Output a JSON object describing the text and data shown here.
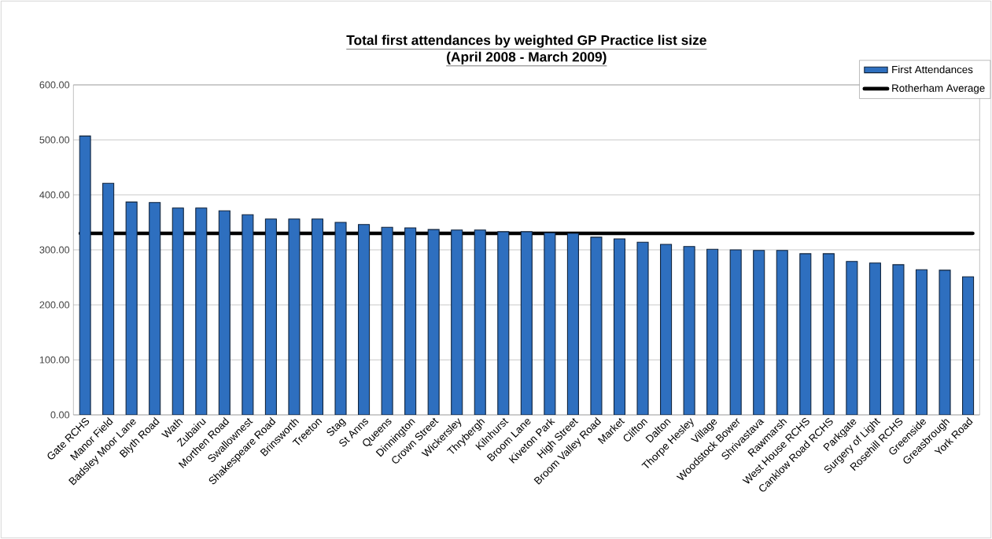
{
  "chart_data": {
    "type": "bar",
    "title": "Total first attendances by weighted GP Practice list size",
    "subtitle": "(April 2008 - March 2009)",
    "categories": [
      "Gate RCHS",
      "Manor Field",
      "Badsley Moor Lane",
      "Blyth Road",
      "Wath",
      "Zubairu",
      "Morthen Road",
      "Swallownest",
      "Shakespeare Road",
      "Brinsworth",
      "Treeton",
      "Stag",
      "St Anns",
      "Queens",
      "Dinnington",
      "Crown Street",
      "Wickersley",
      "Thrybergh",
      "Kilnhurst",
      "Broom Lane",
      "Kiveton Park",
      "High Street",
      "Broom Valley Road",
      "Market",
      "Clifton",
      "Dalton",
      "Thorpe Hesley",
      "Village",
      "Woodstock Bower",
      "Shrivastava",
      "Rawmarsh",
      "West House RCHS",
      "Canklow Road RCHS",
      "Parkgate",
      "Surgery of Light",
      "Rosehill RCHS",
      "Greenside",
      "Greasbrough",
      "York Road"
    ],
    "series": [
      {
        "name": "First Attendances",
        "color": "#2e6fbf",
        "values": [
          507,
          421,
          387,
          386,
          376,
          376,
          371,
          364,
          356,
          356,
          356,
          350,
          346,
          341,
          340,
          337,
          336,
          336,
          333,
          333,
          331,
          330,
          323,
          320,
          314,
          310,
          306,
          301,
          300,
          299,
          299,
          293,
          293,
          279,
          276,
          273,
          264,
          263,
          251
        ]
      }
    ],
    "ref_lines": [
      {
        "axis": "y",
        "value": 330,
        "label": "Rotherham Average",
        "color": "#000000"
      }
    ],
    "ylim": [
      0,
      600
    ],
    "yticks": [
      {
        "value": 0,
        "label": "0.00"
      },
      {
        "value": 100,
        "label": "100.00"
      },
      {
        "value": 200,
        "label": "200.00"
      },
      {
        "value": 300,
        "label": "300.00"
      },
      {
        "value": 400,
        "label": "400.00"
      },
      {
        "value": 500,
        "label": "500.00"
      },
      {
        "value": 600,
        "label": "600.00"
      }
    ],
    "grid": "y",
    "legend": "top right"
  }
}
